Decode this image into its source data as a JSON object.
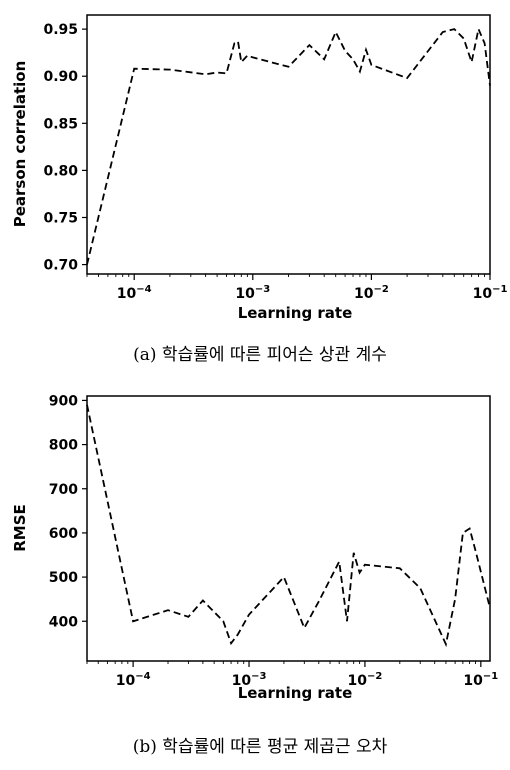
{
  "chart_data": [
    {
      "type": "line",
      "x_scale": "log",
      "xlim": [
        4e-05,
        0.1
      ],
      "ylim": [
        0.69,
        0.965
      ],
      "xlabel": "Learning rate",
      "ylabel": "Pearson correlation",
      "x_ticks": [
        {
          "value": 0.0001,
          "base": "10",
          "exp": "−4"
        },
        {
          "value": 0.001,
          "base": "10",
          "exp": "−3"
        },
        {
          "value": 0.01,
          "base": "10",
          "exp": "−2"
        },
        {
          "value": 0.1,
          "base": "10",
          "exp": "−1"
        }
      ],
      "y_ticks": [
        "0.70",
        "0.75",
        "0.80",
        "0.85",
        "0.90",
        "0.95"
      ],
      "caption": "(a) 학습률에 따른 피어슨 상관 계수",
      "line_style": "dashed",
      "color": "#000000",
      "series": [
        {
          "x": [
            4e-05,
            0.0001,
            0.0002,
            0.0004,
            0.0005,
            0.0006,
            0.0007,
            0.00075,
            0.0008,
            0.0009,
            0.001,
            0.002,
            0.003,
            0.004,
            0.005,
            0.006,
            0.007,
            0.008,
            0.009,
            0.01,
            0.02,
            0.04,
            0.05,
            0.06,
            0.07,
            0.08,
            0.09,
            0.1
          ],
          "y": [
            0.7,
            0.908,
            0.907,
            0.902,
            0.904,
            0.903,
            0.935,
            0.937,
            0.915,
            0.922,
            0.92,
            0.91,
            0.933,
            0.918,
            0.947,
            0.927,
            0.918,
            0.905,
            0.928,
            0.912,
            0.898,
            0.947,
            0.95,
            0.94,
            0.915,
            0.95,
            0.935,
            0.89
          ]
        }
      ]
    },
    {
      "type": "line",
      "x_scale": "log",
      "xlim": [
        4e-05,
        0.12
      ],
      "ylim": [
        310,
        910
      ],
      "xlabel": "Learning rate",
      "ylabel": "RMSE",
      "x_ticks": [
        {
          "value": 0.0001,
          "base": "10",
          "exp": "−4"
        },
        {
          "value": 0.001,
          "base": "10",
          "exp": "−3"
        },
        {
          "value": 0.01,
          "base": "10",
          "exp": "−2"
        },
        {
          "value": 0.1,
          "base": "10",
          "exp": "−1"
        }
      ],
      "y_ticks": [
        "400",
        "500",
        "600",
        "700",
        "800",
        "900"
      ],
      "caption": "(b) 학습률에 따른 평균 제곱근 오차",
      "line_style": "dashed",
      "color": "#000000",
      "series": [
        {
          "x": [
            4e-05,
            0.0001,
            0.0002,
            0.0003,
            0.0004,
            0.0006,
            0.0007,
            0.0008,
            0.001,
            0.002,
            0.003,
            0.004,
            0.006,
            0.007,
            0.008,
            0.009,
            0.01,
            0.02,
            0.03,
            0.05,
            0.06,
            0.07,
            0.08,
            0.09,
            0.12
          ],
          "y": [
            890,
            400,
            425,
            410,
            447,
            400,
            350,
            370,
            415,
            500,
            385,
            445,
            535,
            400,
            555,
            510,
            528,
            520,
            475,
            348,
            450,
            600,
            610,
            560,
            430
          ]
        }
      ]
    }
  ]
}
